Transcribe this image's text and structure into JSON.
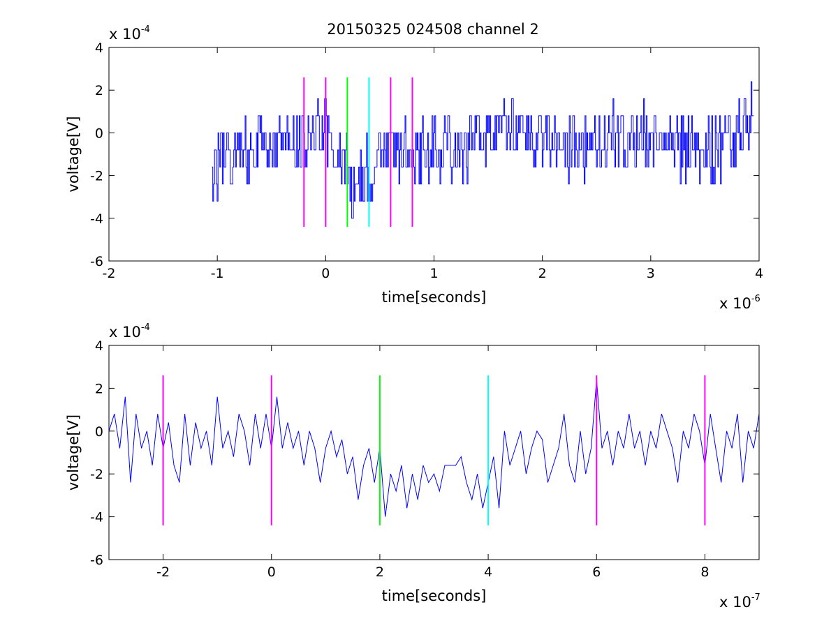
{
  "figure": {
    "title": "20150325 024508 channel 2"
  },
  "colors": {
    "signal": "#0000ff",
    "magenta": "#ff00ff",
    "green": "#00ff00",
    "cyan": "#00ffff",
    "axes": "#000000",
    "background": "#ffffff"
  },
  "chart_data": [
    {
      "type": "line",
      "title": "20150325 024508 channel 2",
      "xlabel": "time[seconds]",
      "ylabel": "voltage[V]",
      "x_multiplier_label": "x 10",
      "x_multiplier_exp": "-6",
      "y_multiplier_label": "x 10",
      "y_multiplier_exp": "-4",
      "xlim": [
        -2,
        4
      ],
      "ylim": [
        -6,
        4
      ],
      "xticks": [
        -2,
        -1,
        0,
        1,
        2,
        3,
        4
      ],
      "xtick_labels": [
        "-2",
        "-1",
        "0",
        "1",
        "2",
        "3",
        "4"
      ],
      "yticks": [
        -6,
        -4,
        -2,
        0,
        2,
        4
      ],
      "ytick_labels": [
        "-6",
        "-4",
        "-2",
        "0",
        "2",
        "4"
      ],
      "grid": false,
      "series": [
        {
          "color": "#0000ff",
          "x_start": -1.05,
          "x_end": 3.95,
          "x": [
            -1.05,
            -0.8,
            -0.6,
            -0.4,
            -0.2,
            0.0,
            0.1,
            0.2,
            0.3,
            0.4,
            0.5,
            0.6,
            0.8,
            1.0,
            1.2,
            1.5,
            1.7,
            2.0,
            2.15,
            2.5,
            3.0,
            3.3,
            3.45,
            3.7,
            3.95
          ],
          "y": [
            -1.6,
            -0.8,
            -0.2,
            -0.5,
            -0.3,
            0.4,
            -0.6,
            -2.0,
            -2.4,
            -1.6,
            -1.0,
            -0.6,
            -0.8,
            -0.4,
            -0.8,
            0.0,
            0.2,
            -0.4,
            -0.8,
            -0.6,
            -0.2,
            -0.6,
            -1.0,
            -0.4,
            0.8
          ],
          "noise_band": [
            -2.6,
            1.8
          ],
          "min_y": -4.0,
          "max_y": 2.4
        }
      ],
      "markers": [
        {
          "x": -0.2,
          "color": "magenta"
        },
        {
          "x": 0.0,
          "color": "magenta"
        },
        {
          "x": 0.2,
          "color": "green"
        },
        {
          "x": 0.4,
          "color": "cyan"
        },
        {
          "x": 0.6,
          "color": "magenta"
        },
        {
          "x": 0.8,
          "color": "magenta"
        }
      ],
      "marker_y_range": [
        -4.4,
        2.6
      ]
    },
    {
      "type": "line",
      "xlabel": "time[seconds]",
      "ylabel": "voltage[V]",
      "x_multiplier_label": "x 10",
      "x_multiplier_exp": "-7",
      "y_multiplier_label": "x 10",
      "y_multiplier_exp": "-4",
      "xlim": [
        -3,
        9
      ],
      "ylim": [
        -6,
        4
      ],
      "xticks": [
        -2,
        0,
        2,
        4,
        6,
        8
      ],
      "xtick_labels": [
        "-2",
        "0",
        "2",
        "4",
        "6",
        "8"
      ],
      "yticks": [
        -6,
        -4,
        -2,
        0,
        2,
        4
      ],
      "ytick_labels": [
        "-6",
        "-4",
        "-2",
        "0",
        "2",
        "4"
      ],
      "grid": false,
      "series": [
        {
          "color": "#0000ff",
          "x": [
            -3.0,
            -2.9,
            -2.8,
            -2.7,
            -2.6,
            -2.5,
            -2.4,
            -2.3,
            -2.2,
            -2.1,
            -2.0,
            -1.9,
            -1.8,
            -1.7,
            -1.6,
            -1.5,
            -1.4,
            -1.3,
            -1.2,
            -1.1,
            -1.0,
            -0.9,
            -0.8,
            -0.7,
            -0.6,
            -0.5,
            -0.4,
            -0.3,
            -0.2,
            -0.1,
            0.0,
            0.1,
            0.2,
            0.3,
            0.4,
            0.5,
            0.6,
            0.7,
            0.8,
            0.9,
            1.0,
            1.1,
            1.2,
            1.3,
            1.4,
            1.5,
            1.6,
            1.7,
            1.8,
            1.9,
            2.0,
            2.1,
            2.2,
            2.3,
            2.4,
            2.5,
            2.6,
            2.7,
            2.8,
            2.9,
            3.0,
            3.1,
            3.2,
            3.3,
            3.4,
            3.5,
            3.6,
            3.7,
            3.8,
            3.9,
            4.0,
            4.1,
            4.2,
            4.3,
            4.4,
            4.5,
            4.6,
            4.7,
            4.8,
            4.9,
            5.0,
            5.1,
            5.2,
            5.3,
            5.4,
            5.5,
            5.6,
            5.7,
            5.8,
            5.9,
            6.0,
            6.1,
            6.2,
            6.3,
            6.4,
            6.5,
            6.6,
            6.7,
            6.8,
            6.9,
            7.0,
            7.1,
            7.2,
            7.3,
            7.4,
            7.5,
            7.6,
            7.7,
            7.8,
            7.9,
            8.0,
            8.1,
            8.2,
            8.3,
            8.4,
            8.5,
            8.6,
            8.7,
            8.8,
            8.9,
            9.0
          ],
          "y": [
            0.0,
            0.8,
            -0.8,
            1.6,
            -2.4,
            0.8,
            -0.8,
            0.0,
            -1.6,
            0.8,
            -0.8,
            0.4,
            -1.6,
            -2.4,
            0.8,
            -1.6,
            0.4,
            -0.8,
            0.0,
            -1.6,
            1.6,
            -0.8,
            0.0,
            -1.2,
            0.8,
            0.0,
            -1.6,
            0.8,
            -0.8,
            0.8,
            -0.8,
            1.6,
            -0.8,
            0.4,
            -0.8,
            0.0,
            -1.6,
            0.0,
            -0.8,
            -2.4,
            -0.8,
            0.0,
            -1.2,
            -0.4,
            -2.0,
            -1.2,
            -3.2,
            -1.6,
            -0.8,
            -2.4,
            -0.8,
            -4.0,
            -2.0,
            -2.8,
            -1.6,
            -3.6,
            -2.0,
            -3.2,
            -1.6,
            -2.4,
            -2.0,
            -2.8,
            -1.6,
            -1.6,
            -1.6,
            -1.2,
            -2.4,
            -3.2,
            -2.0,
            -3.6,
            -2.4,
            -1.2,
            -3.6,
            0.0,
            -1.6,
            -0.8,
            0.0,
            -2.0,
            -0.8,
            0.0,
            -0.4,
            -2.4,
            -1.6,
            -0.8,
            0.8,
            -1.6,
            -2.4,
            0.0,
            -2.0,
            -0.8,
            2.4,
            -0.8,
            0.0,
            -1.6,
            0.0,
            -0.8,
            0.8,
            -0.8,
            0.0,
            -1.6,
            0.0,
            -0.8,
            0.8,
            0.0,
            -0.8,
            -2.4,
            0.0,
            -0.8,
            0.8,
            0.0,
            -1.6,
            0.8,
            -0.8,
            -2.4,
            0.0,
            -0.8,
            0.8,
            -2.4,
            0.0,
            -0.8,
            0.8
          ]
        }
      ],
      "markers": [
        {
          "x": -2,
          "color": "magenta"
        },
        {
          "x": 0,
          "color": "magenta"
        },
        {
          "x": 2,
          "color": "green"
        },
        {
          "x": 4,
          "color": "cyan"
        },
        {
          "x": 6,
          "color": "magenta"
        },
        {
          "x": 8,
          "color": "magenta"
        }
      ],
      "marker_y_range": [
        -4.4,
        2.6
      ]
    }
  ]
}
